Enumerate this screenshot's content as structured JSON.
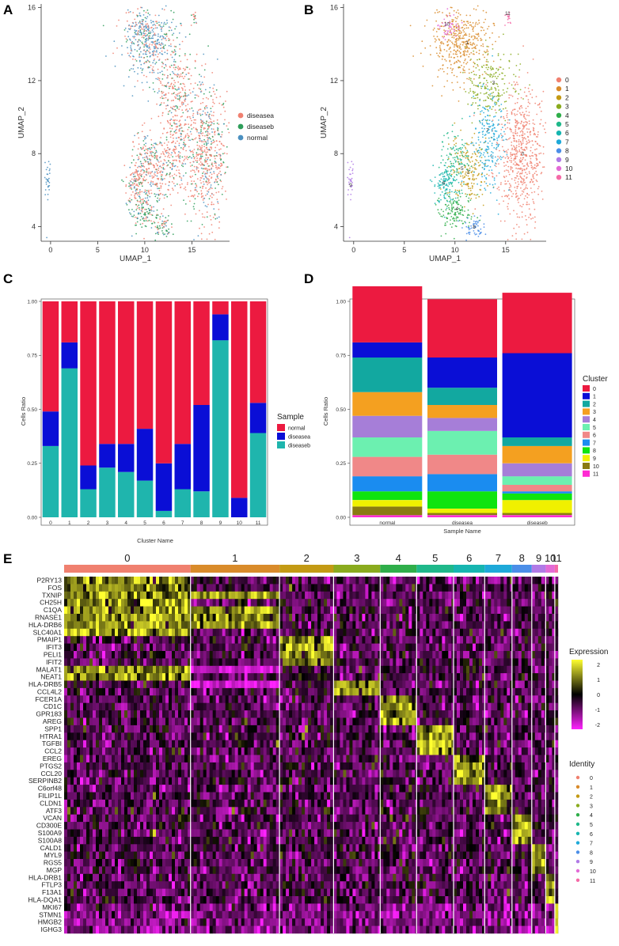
{
  "panels": {
    "A": {
      "letter": "A",
      "xlabel": "UMAP_1",
      "ylabel": "UMAP_2",
      "xticks": [
        0,
        5,
        10,
        15
      ],
      "yticks": [
        4,
        8,
        12,
        16
      ],
      "xlim": [
        -1,
        19
      ],
      "ylim": [
        3.2,
        16.2
      ],
      "legend": [
        {
          "label": "diseasea",
          "color": "#f08070"
        },
        {
          "label": "diseaseb",
          "color": "#2e9e5a"
        },
        {
          "label": "normal",
          "color": "#4a90c0"
        }
      ]
    },
    "B": {
      "letter": "B",
      "xlabel": "UMAP_1",
      "ylabel": "UMAP_2",
      "xticks": [
        0,
        5,
        10,
        15
      ],
      "yticks": [
        4,
        8,
        12,
        16
      ],
      "xlim": [
        -1,
        19
      ],
      "ylim": [
        3.2,
        16.2
      ],
      "legend": [
        {
          "label": "0",
          "color": "#f0806f"
        },
        {
          "label": "1",
          "color": "#d98b2a"
        },
        {
          "label": "2",
          "color": "#c39a14"
        },
        {
          "label": "3",
          "color": "#8aab1e"
        },
        {
          "label": "4",
          "color": "#2fae4a"
        },
        {
          "label": "5",
          "color": "#1fb88a"
        },
        {
          "label": "6",
          "color": "#16b5b0"
        },
        {
          "label": "7",
          "color": "#1ea9d9"
        },
        {
          "label": "8",
          "color": "#4b8ee8"
        },
        {
          "label": "9",
          "color": "#b07ae6"
        },
        {
          "label": "10",
          "color": "#e36ad6"
        },
        {
          "label": "11",
          "color": "#f56aa7"
        }
      ],
      "cluster_labels": [
        {
          "label": "0",
          "x": 16.7,
          "y": 7.9
        },
        {
          "label": "1",
          "x": 11.2,
          "y": 14.0
        },
        {
          "label": "2",
          "x": 11.3,
          "y": 6.9
        },
        {
          "label": "3",
          "x": 13.8,
          "y": 11.8
        },
        {
          "label": "4",
          "x": 10.2,
          "y": 4.9
        },
        {
          "label": "5",
          "x": 10.7,
          "y": 7.1
        },
        {
          "label": "6",
          "x": 8.9,
          "y": 6.3
        },
        {
          "label": "7",
          "x": 13.2,
          "y": 9.2
        },
        {
          "label": "8",
          "x": 11.9,
          "y": 3.9
        },
        {
          "label": "9",
          "x": -0.3,
          "y": 6.2
        },
        {
          "label": "10",
          "x": 9.2,
          "y": 15.0
        },
        {
          "label": "11",
          "x": 15.2,
          "y": 15.6
        }
      ]
    },
    "C": {
      "letter": "C"
    },
    "D": {
      "letter": "D"
    },
    "E": {
      "letter": "E"
    }
  },
  "chart_data": [
    {
      "type": "bar",
      "panel": "C",
      "title": "",
      "xlabel": "Cluster Name",
      "ylabel": "Cells Ratio",
      "ylim": [
        0,
        1
      ],
      "yticks": [
        "0.00",
        "0.25",
        "0.50",
        "0.75",
        "1.00"
      ],
      "categories": [
        "0",
        "1",
        "2",
        "3",
        "4",
        "5",
        "6",
        "7",
        "8",
        "9",
        "10",
        "11"
      ],
      "stacked": true,
      "legend_title": "Sample",
      "series": [
        {
          "name": "diseaseb",
          "color": "#1fb5ad",
          "values": [
            0.33,
            0.69,
            0.13,
            0.23,
            0.21,
            0.17,
            0.03,
            0.13,
            0.12,
            0.82,
            0.0,
            0.39
          ]
        },
        {
          "name": "diseasea",
          "color": "#0a0ed6",
          "values": [
            0.16,
            0.12,
            0.11,
            0.11,
            0.13,
            0.24,
            0.22,
            0.21,
            0.4,
            0.12,
            0.09,
            0.14
          ]
        },
        {
          "name": "normal",
          "color": "#ec1a40",
          "values": [
            0.51,
            0.19,
            0.76,
            0.66,
            0.66,
            0.59,
            0.75,
            0.66,
            0.48,
            0.06,
            0.91,
            0.47
          ]
        }
      ],
      "legend": [
        "normal",
        "diseasea",
        "diseaseb"
      ]
    },
    {
      "type": "bar",
      "panel": "D",
      "title": "",
      "xlabel": "Sample Name",
      "ylabel": "Cells Ratio",
      "ylim": [
        0,
        1
      ],
      "yticks": [
        "0.00",
        "0.25",
        "0.50",
        "0.75",
        "1.00"
      ],
      "categories": [
        "normal",
        "diseasea",
        "diseaseb"
      ],
      "stacked": true,
      "legend_title": "Cluster",
      "series": [
        {
          "name": "11",
          "color": "#ff2bd3",
          "values": [
            0.01,
            0.01,
            0.01
          ]
        },
        {
          "name": "10",
          "color": "#8a7a12",
          "values": [
            0.04,
            0.01,
            0.01
          ]
        },
        {
          "name": "9",
          "color": "#f0f000",
          "values": [
            0.03,
            0.02,
            0.06
          ]
        },
        {
          "name": "8",
          "color": "#0fe40f",
          "values": [
            0.04,
            0.08,
            0.03
          ]
        },
        {
          "name": "7",
          "color": "#1a8cf0",
          "values": [
            0.07,
            0.08,
            0.01
          ]
        },
        {
          "name": "6",
          "color": "#f08888",
          "values": [
            0.09,
            0.09,
            0.03
          ]
        },
        {
          "name": "5",
          "color": "#6cf0b0",
          "values": [
            0.09,
            0.11,
            0.04
          ]
        },
        {
          "name": "4",
          "color": "#a67ed8",
          "values": [
            0.1,
            0.06,
            0.06
          ]
        },
        {
          "name": "3",
          "color": "#f4a020",
          "values": [
            0.11,
            0.06,
            0.08
          ]
        },
        {
          "name": "2",
          "color": "#12a8a0",
          "values": [
            0.16,
            0.08,
            0.04
          ]
        },
        {
          "name": "1",
          "color": "#0a0ed6",
          "values": [
            0.07,
            0.14,
            0.39
          ]
        },
        {
          "name": "0",
          "color": "#ec1a40",
          "values": [
            0.26,
            0.27,
            0.28
          ]
        }
      ],
      "legend": [
        "0",
        "1",
        "2",
        "3",
        "4",
        "5",
        "6",
        "7",
        "8",
        "9",
        "10",
        "11"
      ]
    },
    {
      "type": "heatmap",
      "panel": "E",
      "title": "",
      "clusters": [
        {
          "label": "0",
          "color": "#f0806f",
          "size": 0.236
        },
        {
          "label": "1",
          "color": "#d98b2a",
          "size": 0.166
        },
        {
          "label": "2",
          "color": "#c39a14",
          "size": 0.101
        },
        {
          "label": "3",
          "color": "#8aab1e",
          "size": 0.087
        },
        {
          "label": "4",
          "color": "#2fae4a",
          "size": 0.068
        },
        {
          "label": "5",
          "color": "#1fb88a",
          "size": 0.069
        },
        {
          "label": "6",
          "color": "#16b5b0",
          "size": 0.058
        },
        {
          "label": "7",
          "color": "#1ea9d9",
          "size": 0.051
        },
        {
          "label": "8",
          "color": "#4b8ee8",
          "size": 0.037
        },
        {
          "label": "9",
          "color": "#b07ae6",
          "size": 0.026
        },
        {
          "label": "10",
          "color": "#e36ad6",
          "size": 0.017
        },
        {
          "label": "11",
          "color": "#f56aa7",
          "size": 0.006
        }
      ],
      "genes": [
        "P2RY13",
        "FOS",
        "TXNIP",
        "CH25H",
        "C1QA",
        "RNASE1",
        "HLA-DRB6",
        "SLC40A1",
        "PMAIP1",
        "IFIT3",
        "PELI1",
        "IFIT2",
        "MALAT1",
        "NEAT1",
        "HLA-DRB5",
        "CCL4L2",
        "FCER1A",
        "CD1C",
        "GPR183",
        "AREG",
        "SPP1",
        "HTRA1",
        "TGFBI",
        "CCL2",
        "EREG",
        "PTGS2",
        "CCL20",
        "SERPINB2",
        "C6orf48",
        "FILIP1L",
        "CLDN1",
        "ATF3",
        "VCAN",
        "CD300E",
        "S100A9",
        "S100A8",
        "CALD1",
        "MYL9",
        "RGS5",
        "MGP",
        "HLA-DRB1",
        "FTLP3",
        "F13A1",
        "HLA-DQA1",
        "MKI67",
        "STMN1",
        "HMGB2",
        "IGHG3"
      ],
      "high": [
        [
          0,
          0
        ],
        [
          1,
          0
        ],
        [
          2,
          0
        ],
        [
          2,
          1
        ],
        [
          3,
          0
        ],
        [
          4,
          0
        ],
        [
          4,
          1
        ],
        [
          5,
          0
        ],
        [
          5,
          1
        ],
        [
          6,
          0
        ],
        [
          6,
          1
        ],
        [
          7,
          0
        ],
        [
          8,
          2
        ],
        [
          9,
          2
        ],
        [
          10,
          2
        ],
        [
          11,
          2
        ],
        [
          12,
          0
        ],
        [
          13,
          0
        ],
        [
          14,
          3
        ],
        [
          15,
          3
        ],
        [
          16,
          4
        ],
        [
          17,
          4
        ],
        [
          18,
          4
        ],
        [
          19,
          4
        ],
        [
          20,
          5
        ],
        [
          21,
          5
        ],
        [
          22,
          5
        ],
        [
          23,
          5
        ],
        [
          24,
          6
        ],
        [
          25,
          6
        ],
        [
          26,
          6
        ],
        [
          27,
          6
        ],
        [
          28,
          7
        ],
        [
          29,
          7
        ],
        [
          30,
          7
        ],
        [
          31,
          7
        ],
        [
          32,
          8
        ],
        [
          33,
          8
        ],
        [
          34,
          8
        ],
        [
          35,
          8
        ],
        [
          36,
          9
        ],
        [
          37,
          9
        ],
        [
          38,
          9
        ],
        [
          39,
          9
        ],
        [
          40,
          10
        ],
        [
          41,
          10
        ],
        [
          42,
          10
        ],
        [
          43,
          10
        ],
        [
          44,
          11
        ],
        [
          45,
          11
        ],
        [
          46,
          11
        ],
        [
          47,
          11
        ]
      ],
      "low": [
        [
          12,
          1
        ],
        [
          14,
          1
        ]
      ],
      "legend_title": "Expression",
      "scale_ticks": [
        "2",
        "1",
        "0",
        "-1",
        "-2"
      ],
      "scale_colors": [
        "#ffff30",
        "#000000",
        "#ff22ff"
      ],
      "identity_title": "Identity"
    }
  ]
}
